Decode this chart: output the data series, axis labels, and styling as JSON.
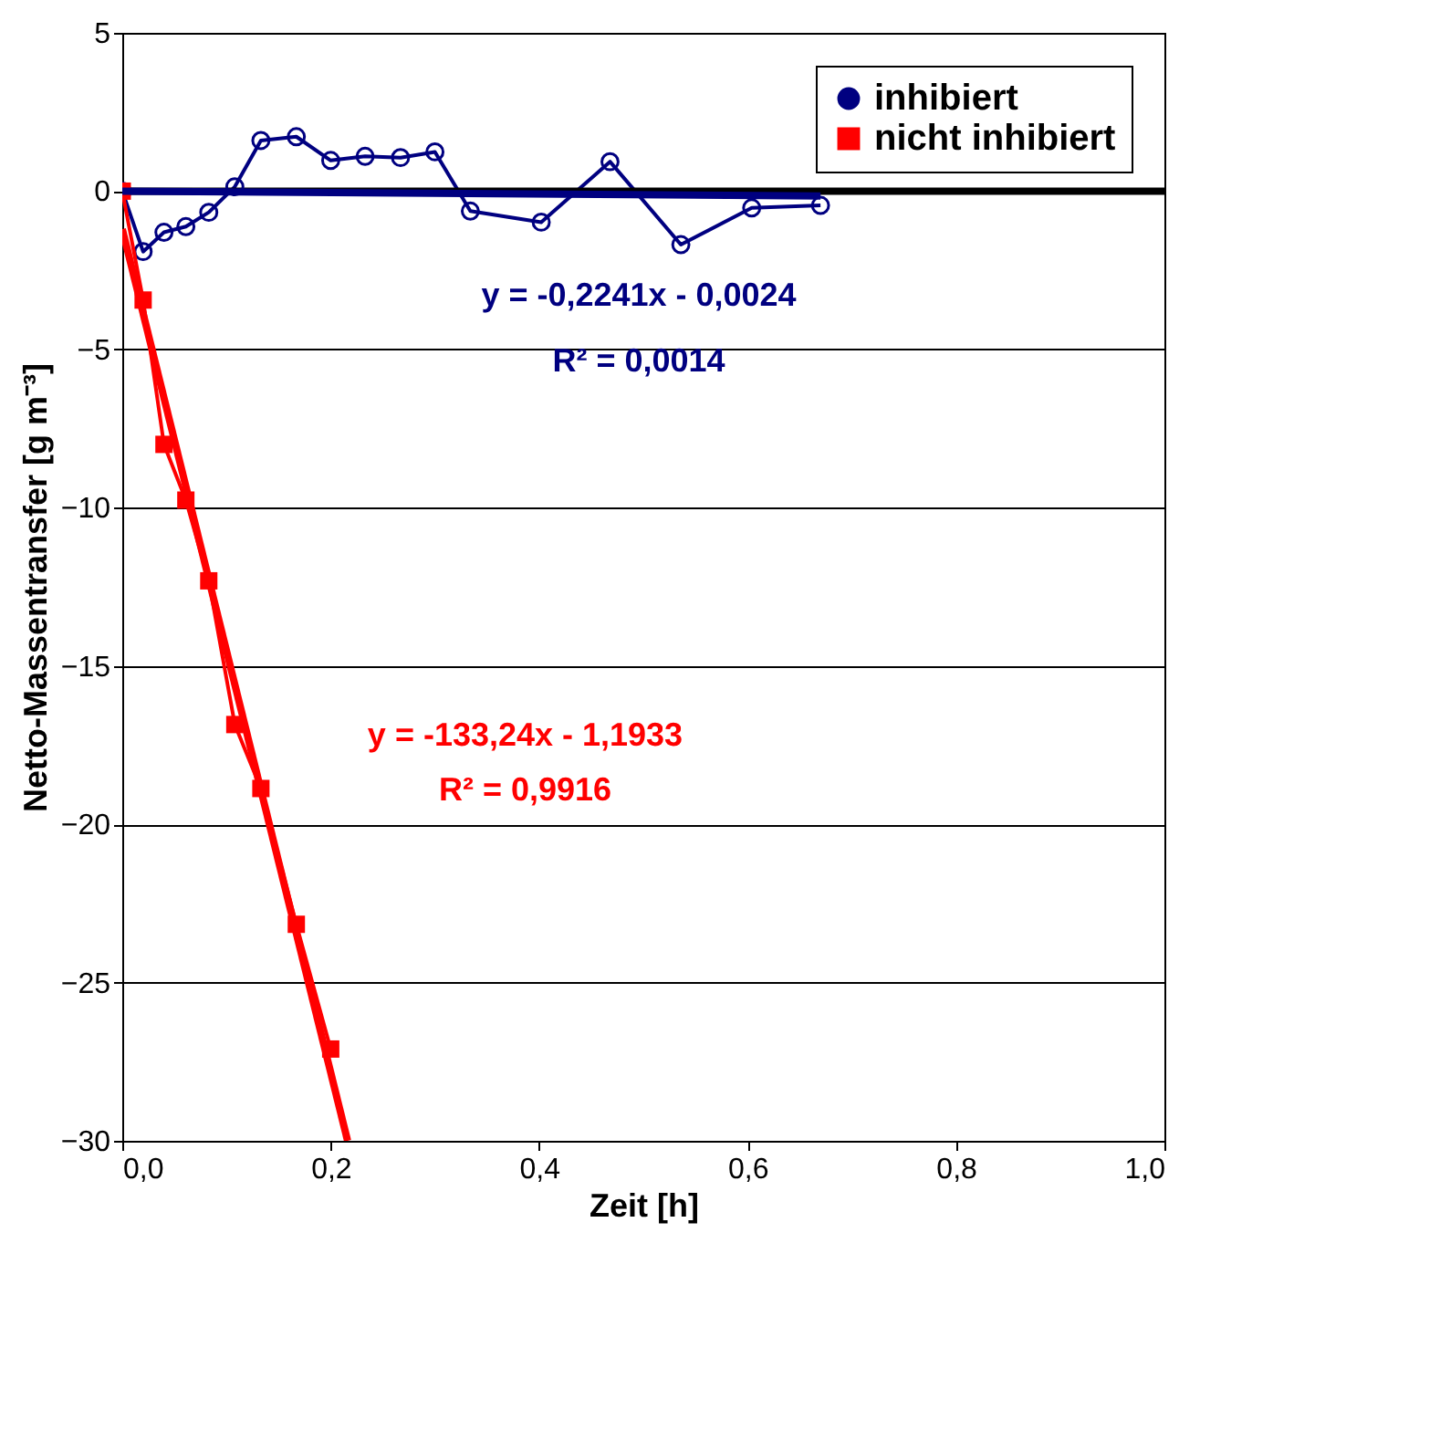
{
  "chart_data": {
    "type": "line",
    "xlabel": "Zeit [h]",
    "ylabel": "Netto-Massentransfer [g m⁻³]",
    "xlim": [
      0,
      1
    ],
    "ylim": [
      -30,
      5
    ],
    "xticks": [
      {
        "value": 0,
        "label": "0,0"
      },
      {
        "value": 0.2,
        "label": "0,2"
      },
      {
        "value": 0.4,
        "label": "0,4"
      },
      {
        "value": 0.6,
        "label": "0,6"
      },
      {
        "value": 0.8,
        "label": "0,8"
      },
      {
        "value": 1,
        "label": "1,0"
      }
    ],
    "yticks": [
      5,
      0,
      -5,
      -10,
      -15,
      -20,
      -25,
      -30
    ],
    "grid": "y",
    "legend": "top right",
    "series": [
      {
        "name": "inhibiert",
        "color": "#000080",
        "marker": "circle",
        "x": [
          0,
          0.02,
          0.04,
          0.061,
          0.083,
          0.108,
          0.133,
          0.167,
          0.2,
          0.233,
          0.267,
          0.3,
          0.334,
          0.402,
          0.468,
          0.536,
          0.604,
          0.67
        ],
        "values": [
          0,
          -1.91,
          -1.3,
          -1.12,
          -0.67,
          0.14,
          1.6,
          1.72,
          0.97,
          1.1,
          1.06,
          1.24,
          -0.63,
          -0.98,
          0.93,
          -1.69,
          -0.53,
          -0.45
        ]
      },
      {
        "name": "nicht inhibiert",
        "color": "#ff0000",
        "marker": "square",
        "x": [
          0,
          0.02,
          0.04,
          0.061,
          0.083,
          0.108,
          0.133,
          0.167,
          0.2
        ],
        "values": [
          0,
          -3.44,
          -8.0,
          -9.76,
          -12.31,
          -16.85,
          -18.87,
          -23.16,
          -27.1
        ]
      },
      {
        "color": "#000080",
        "marker": "none",
        "x": [
          0,
          0.67
        ],
        "values": [
          0,
          -0.15
        ]
      },
      {
        "color": "#ff0000",
        "marker": "none",
        "x": [
          0,
          0.2162
        ],
        "values": [
          -1.2,
          -30.0
        ]
      }
    ],
    "ref_lines": [
      {
        "axis": "y",
        "value": 0,
        "color": "#000000"
      }
    ],
    "annotations": [
      "y = -0,2241x - 0,0024",
      "R² = 0,0014",
      "y = -133,24x - 1,1933",
      "R² = 0,9916"
    ]
  }
}
